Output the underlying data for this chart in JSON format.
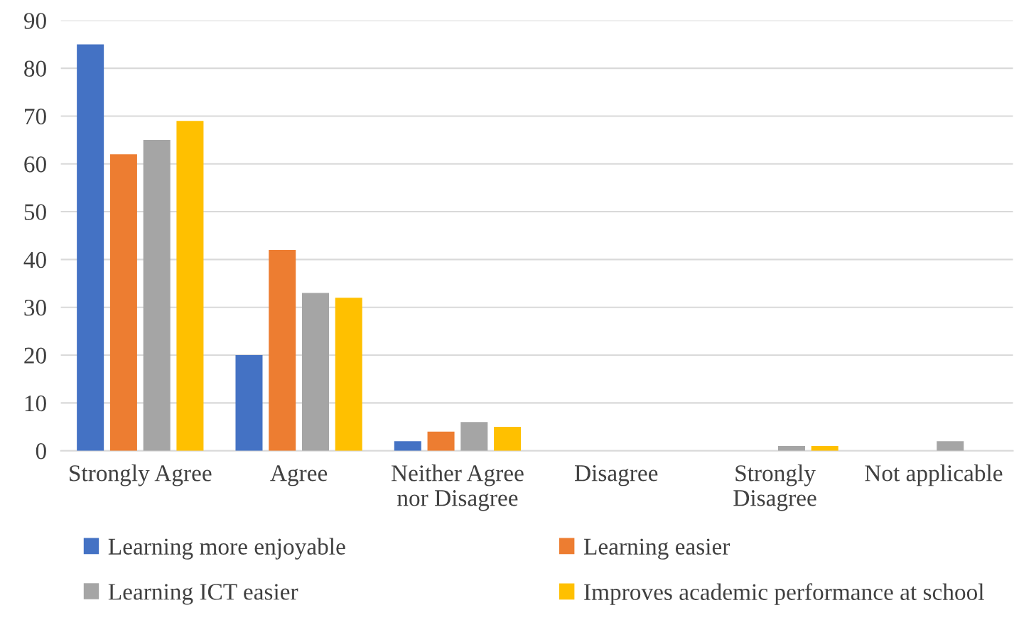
{
  "chart_data": {
    "type": "bar",
    "categories": [
      "Strongly Agree",
      "Agree",
      "Neither Agree\nnor Disagree",
      "Disagree",
      "Strongly\nDisagree",
      "Not applicable"
    ],
    "series": [
      {
        "name": "Learning more enjoyable",
        "color": "#4472c4",
        "values": [
          85,
          20,
          2,
          0,
          0,
          0
        ]
      },
      {
        "name": "Learning easier",
        "color": "#ed7d31",
        "values": [
          62,
          42,
          4,
          0,
          0,
          0
        ]
      },
      {
        "name": "Learning ICT easier",
        "color": "#a5a5a5",
        "values": [
          65,
          33,
          6,
          0,
          1,
          2
        ]
      },
      {
        "name": "Improves academic performance at school",
        "color": "#ffc000",
        "values": [
          69,
          32,
          5,
          0,
          1,
          0
        ]
      }
    ],
    "ylim": [
      0,
      90
    ],
    "yticks": [
      0,
      10,
      20,
      30,
      40,
      50,
      60,
      70,
      80,
      90
    ],
    "grid": "y",
    "legend": "bottom"
  }
}
